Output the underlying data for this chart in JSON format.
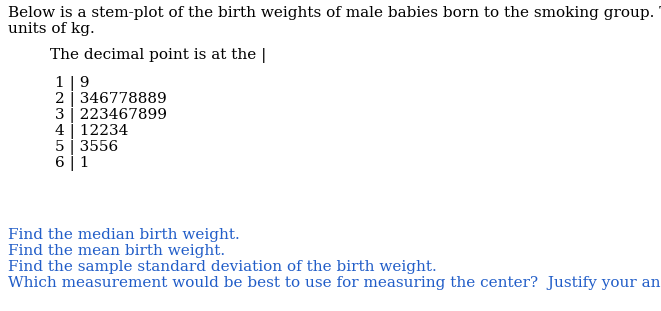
{
  "bg_color": "#ffffff",
  "text_color": "#000000",
  "blue_color": "#215dc8",
  "intro_line1": "Below is a stem-plot of the birth weights of male babies born to the smoking group. The stems are in",
  "intro_line2": "units of kg.",
  "decimal_line": "The decimal point is at the |",
  "stem_rows": [
    "1 | 9",
    "2 | 346778889",
    "3 | 223467899",
    "4 | 12234",
    "5 | 3556",
    "6 | 1"
  ],
  "questions": [
    "Find the median birth weight.",
    "Find the mean birth weight.",
    "Find the sample standard deviation of the birth weight.",
    "Which measurement would be best to use for measuring the center?  Justify your answer."
  ],
  "font_size": 11.0,
  "stem_font_size": 11.0
}
